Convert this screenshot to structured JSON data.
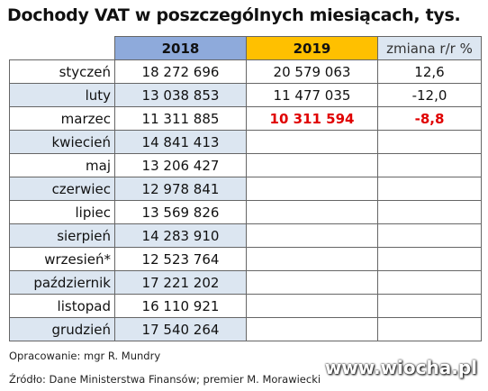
{
  "title": "Dochody VAT w poszczególnych miesiącach, tys.",
  "table": {
    "headers": [
      "2018",
      "2019",
      "zmiana r/r %"
    ],
    "header_colors": [
      "#8eaadb",
      "#ffc000",
      "#dce6f1"
    ],
    "stripe_color": "#dce6f1",
    "highlight_row": 2,
    "highlight_color": "#e00000",
    "rows": [
      [
        "styczeń",
        "18 272 696",
        "20 579 063",
        "12,6"
      ],
      [
        "luty",
        "13 038 853",
        "11 477 035",
        "-12,0"
      ],
      [
        "marzec",
        "11 311 885",
        "10 311 594",
        "-8,8"
      ],
      [
        "kwiecień",
        "14 841 413"
      ],
      [
        "maj",
        "13 206 427"
      ],
      [
        "czerwiec",
        "12 978 841"
      ],
      [
        "lipiec",
        "13 569 826"
      ],
      [
        "sierpień",
        "14 283 910"
      ],
      [
        "wrzesień*",
        "12 523 764"
      ],
      [
        "październik",
        "17 221 202"
      ],
      [
        "listopad",
        "16 110 921"
      ],
      [
        "grudzień",
        "17 540 264"
      ]
    ]
  },
  "footer": [
    "Opracowanie: mgr R. Mundry",
    "Źródło: Dane Ministerstwa Finansów; premier M. Morawiecki"
  ],
  "watermark": "www.wiocha.pl"
}
